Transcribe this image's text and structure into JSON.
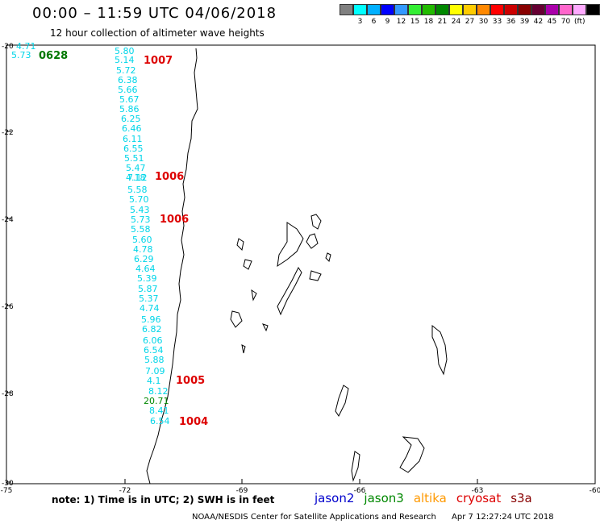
{
  "header": {
    "title": "00:00 – 11:59 UTC 04/06/2018",
    "subtitle": "12 hour collection of altimeter wave heights"
  },
  "legend": {
    "colors": [
      "#808080",
      "#00ffff",
      "#00b0ff",
      "#0000ff",
      "#3399ff",
      "#33ee33",
      "#22bb00",
      "#008800",
      "#ffff00",
      "#ffcc00",
      "#ff8800",
      "#ff0000",
      "#cc0000",
      "#880000",
      "#660033",
      "#aa00aa",
      "#ff66cc",
      "#ffaaff",
      "#000000"
    ],
    "labels": [
      "3",
      "6",
      "9",
      "12",
      "15",
      "18",
      "21",
      "24",
      "27",
      "30",
      "33",
      "36",
      "39",
      "42",
      "45",
      "70"
    ],
    "unit": "(ft)"
  },
  "axes": {
    "lat_labels": [
      "-20",
      "-22",
      "-24",
      "-26",
      "-28",
      "-30"
    ],
    "lon_labels": [
      "-75",
      "-72",
      "-69",
      "-66",
      "-63",
      "-60"
    ]
  },
  "time_label": "0628",
  "wave_heights": [
    {
      "v": "4.71",
      "c": "cyan"
    },
    {
      "v": "5.73",
      "c": "cyan"
    },
    {
      "v": "5.80",
      "c": "cyan"
    },
    {
      "v": "5.14",
      "c": "cyan"
    },
    {
      "v": "5.72",
      "c": "cyan"
    },
    {
      "v": "6.38",
      "c": "cyan"
    },
    {
      "v": "5.66",
      "c": "cyan"
    },
    {
      "v": "5.67",
      "c": "cyan"
    },
    {
      "v": "5.86",
      "c": "cyan"
    },
    {
      "v": "6.25",
      "c": "cyan"
    },
    {
      "v": "6.46",
      "c": "cyan"
    },
    {
      "v": "6.11",
      "c": "cyan"
    },
    {
      "v": "6.55",
      "c": "cyan"
    },
    {
      "v": "5.51",
      "c": "cyan"
    },
    {
      "v": "5.47",
      "c": "cyan"
    },
    {
      "v": "4.18",
      "c": "cyan"
    },
    {
      "v": "7.12",
      "c": "cyan"
    },
    {
      "v": "5.58",
      "c": "cyan"
    },
    {
      "v": "5.70",
      "c": "cyan"
    },
    {
      "v": "5.43",
      "c": "cyan"
    },
    {
      "v": "5.73",
      "c": "cyan"
    },
    {
      "v": "5.58",
      "c": "cyan"
    },
    {
      "v": "5.60",
      "c": "cyan"
    },
    {
      "v": "4.78",
      "c": "cyan"
    },
    {
      "v": "6.29",
      "c": "cyan"
    },
    {
      "v": "4.64",
      "c": "cyan"
    },
    {
      "v": "5.39",
      "c": "cyan"
    },
    {
      "v": "5.87",
      "c": "cyan"
    },
    {
      "v": "5.37",
      "c": "cyan"
    },
    {
      "v": "4.74",
      "c": "cyan"
    },
    {
      "v": "5.96",
      "c": "cyan"
    },
    {
      "v": "6.82",
      "c": "cyan"
    },
    {
      "v": "6.06",
      "c": "cyan"
    },
    {
      "v": "6.54",
      "c": "cyan"
    },
    {
      "v": "5.88",
      "c": "cyan"
    },
    {
      "v": "7.09",
      "c": "cyan"
    },
    {
      "v": "4.1",
      "c": "cyan"
    },
    {
      "v": "8.12",
      "c": "cyan"
    },
    {
      "v": "20.71",
      "c": "green"
    },
    {
      "v": "8.41",
      "c": "cyan"
    },
    {
      "v": "6.54",
      "c": "cyan"
    }
  ],
  "pressure_labels": [
    "1007",
    "1006",
    "1006",
    "1005",
    "1004"
  ],
  "footer": {
    "note": "note: 1) Time is in UTC; 2) SWH is in feet",
    "satellites": [
      {
        "name": "jason2",
        "color": "#0000cc"
      },
      {
        "name": "jason3",
        "color": "#008800"
      },
      {
        "name": "altika",
        "color": "#ff9900"
      },
      {
        "name": "cryosat",
        "color": "#dd0000"
      },
      {
        "name": "s3a",
        "color": "#880000"
      }
    ],
    "credit": "NOAA/NESDIS Center for Satellite Applications and Research",
    "timestamp": "Apr  7 12:27:24 UTC 2018"
  }
}
